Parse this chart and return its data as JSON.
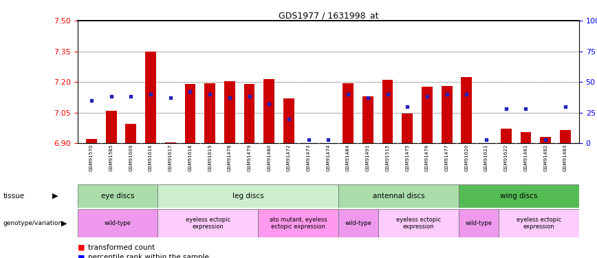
{
  "title": "GDS1977 / 1631998_at",
  "samples": [
    "GSM91570",
    "GSM91585",
    "GSM91609",
    "GSM91616",
    "GSM91617",
    "GSM91618",
    "GSM91619",
    "GSM91478",
    "GSM91479",
    "GSM91480",
    "GSM91472",
    "GSM91473",
    "GSM91474",
    "GSM91484",
    "GSM91491",
    "GSM91515",
    "GSM91475",
    "GSM91476",
    "GSM91477",
    "GSM91620",
    "GSM91621",
    "GSM91622",
    "GSM91481",
    "GSM91482",
    "GSM91483"
  ],
  "transformed_counts": [
    6.92,
    7.06,
    6.995,
    7.35,
    6.905,
    7.19,
    7.195,
    7.205,
    7.19,
    7.215,
    7.12,
    6.9,
    6.9,
    7.195,
    7.13,
    7.21,
    7.045,
    7.175,
    7.18,
    7.225,
    6.9,
    6.97,
    6.955,
    6.93,
    6.965
  ],
  "percentile_ranks_pct": [
    35,
    38,
    38,
    40,
    37,
    42,
    40,
    37,
    38,
    32,
    20,
    3,
    3,
    40,
    37,
    40,
    30,
    38,
    40,
    40,
    3,
    28,
    28,
    3,
    30
  ],
  "ylim_left": [
    6.9,
    7.5
  ],
  "ylim_right": [
    0,
    100
  ],
  "yticks_left": [
    6.9,
    7.05,
    7.2,
    7.35,
    7.5
  ],
  "yticks_right": [
    0,
    25,
    50,
    75,
    100
  ],
  "ytick_labels_right": [
    "0",
    "25",
    "50",
    "75",
    "100%"
  ],
  "bar_color": "#cc0000",
  "percentile_color": "#2222bb",
  "base_value": 6.9,
  "tissue_row": [
    {
      "label": "eye discs",
      "start": 0,
      "end": 4,
      "color": "#aaddaa"
    },
    {
      "label": "leg discs",
      "start": 4,
      "end": 13,
      "color": "#cceecc"
    },
    {
      "label": "antennal discs",
      "start": 13,
      "end": 19,
      "color": "#aaddaa"
    },
    {
      "label": "wing discs",
      "start": 19,
      "end": 25,
      "color": "#55bb55"
    }
  ],
  "geno_row": [
    {
      "label": "wild-type",
      "start": 0,
      "end": 4,
      "color": "#ee99ee"
    },
    {
      "label": "eyeless ectopic\nexpression",
      "start": 4,
      "end": 9,
      "color": "#ffccff"
    },
    {
      "label": "ato mutant, eyeless\nectopic expression",
      "start": 9,
      "end": 13,
      "color": "#ff99ee"
    },
    {
      "label": "wild-type",
      "start": 13,
      "end": 15,
      "color": "#ee99ee"
    },
    {
      "label": "eyeless ectopic\nexpression",
      "start": 15,
      "end": 19,
      "color": "#ffccff"
    },
    {
      "label": "wild-type",
      "start": 19,
      "end": 21,
      "color": "#ee99ee"
    },
    {
      "label": "eyeless ectopic\nexpression",
      "start": 21,
      "end": 25,
      "color": "#ffccff"
    }
  ],
  "hgrid_lines": [
    7.05,
    7.2,
    7.35
  ]
}
